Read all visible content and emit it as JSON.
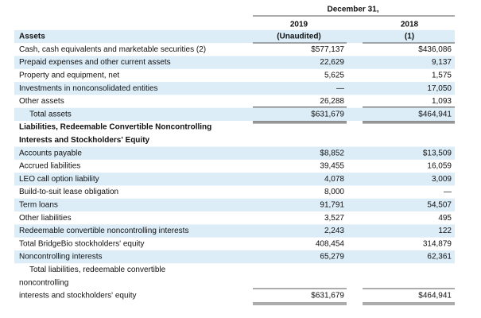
{
  "header": {
    "date": "December 31,",
    "years": [
      "2019",
      "2018"
    ],
    "notes": [
      "(Unaudited)",
      "(1)"
    ]
  },
  "table": {
    "rows": [
      {
        "label": [
          "Assets"
        ]
      },
      {
        "label": [
          "Cash, cash equivalents and marketable securities (2)"
        ],
        "values": [
          "$577,137",
          "$436,086"
        ]
      },
      {
        "label": [
          "Prepaid expenses and other current assets"
        ],
        "values": [
          "22,629",
          "9,137"
        ]
      },
      {
        "label": [
          "Property and equipment, net"
        ],
        "values": [
          "5,625",
          "1,575"
        ]
      },
      {
        "label": [
          "Investments in nonconsolidated entities"
        ],
        "values": [
          "—",
          "17,050"
        ]
      },
      {
        "label": [
          "Other assets"
        ],
        "values": [
          "26,288",
          "1,093"
        ]
      },
      {
        "label": [
          "Total assets"
        ],
        "values": [
          "$631,679",
          "$464,941"
        ]
      },
      {
        "label": [
          "Liabilities, Redeemable Convertible Noncontrolling",
          "Interests and Stockholders' Equity"
        ]
      },
      {
        "label": [
          "Accounts payable"
        ],
        "values": [
          "$8,852",
          "$13,509"
        ]
      },
      {
        "label": [
          "Accrued liabilities"
        ],
        "values": [
          "39,455",
          "16,059"
        ]
      },
      {
        "label": [
          "LEO call option liability"
        ],
        "values": [
          "4,078",
          "3,009"
        ]
      },
      {
        "label": [
          "Build-to-suit lease obligation"
        ],
        "values": [
          "8,000",
          "—"
        ]
      },
      {
        "label": [
          "Term loans"
        ],
        "values": [
          "91,791",
          "54,507"
        ]
      },
      {
        "label": [
          "Other liabilities"
        ],
        "values": [
          "3,527",
          "495"
        ]
      },
      {
        "label": [
          "Redeemable convertible noncontrolling interests"
        ],
        "values": [
          "2,243",
          "122"
        ]
      },
      {
        "label": [
          "Total BridgeBio stockholders' equity"
        ],
        "values": [
          "408,454",
          "314,879"
        ]
      },
      {
        "label": [
          "Noncontrolling interests"
        ],
        "values": [
          "65,279",
          "62,361"
        ]
      },
      {
        "label": [
          "Total liabilities, redeemable convertible",
          "noncontrolling",
          "interests and stockholders' equity"
        ],
        "values": [
          "$631,679",
          "$464,941"
        ]
      }
    ]
  }
}
